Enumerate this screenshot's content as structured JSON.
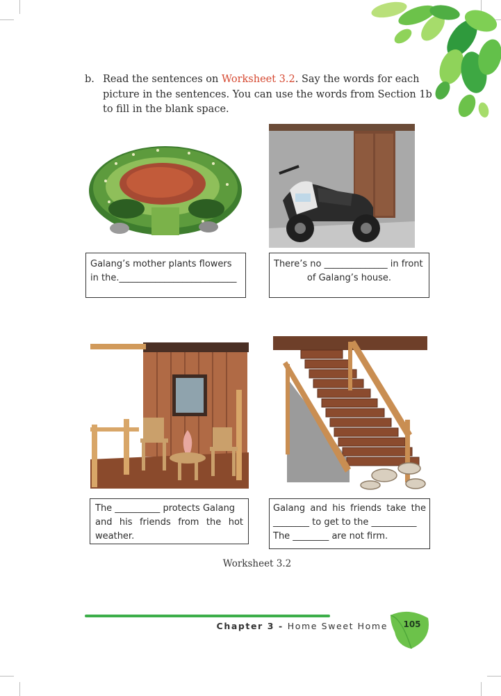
{
  "instruction": {
    "label": "b.",
    "text_before": "Read the sentences on ",
    "highlight": "Worksheet 3.2",
    "text_after": ". Say the words for each picture in the sentences. You can use the words from Section 1b to fill in the blank space."
  },
  "worksheet": [
    {
      "picture": "garden",
      "lines": [
        "Galang’s mother plants flowers",
        "in the.__________________________"
      ]
    },
    {
      "picture": "garage-motorcycle",
      "lines": [
        "There’s no ______________ in front",
        "of Galang’s house."
      ]
    },
    {
      "picture": "terrace",
      "lines": [
        "The __________ protects Galang",
        "and his friends from the hot",
        "weather."
      ]
    },
    {
      "picture": "stairs",
      "lines": [
        "Galang and his friends take the",
        "________ to get to the __________",
        "The ________ are not firm."
      ]
    }
  ],
  "caption": "Worksheet 3.2",
  "footer": {
    "chapter": "Chapter 3",
    "separator": " - ",
    "title": "Home Sweet Home",
    "page": "105"
  },
  "colors": {
    "accent": "#d5472f",
    "green": "#3cae49"
  },
  "icons": [
    "leaf-decoration-icon",
    "page-leaf-icon"
  ]
}
